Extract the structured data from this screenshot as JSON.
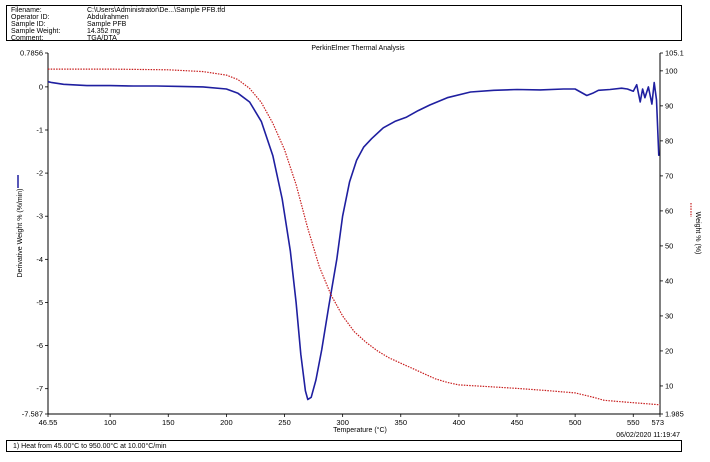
{
  "header": {
    "fields": [
      {
        "label": "Filename:",
        "value": "C:\\Users\\Administrator\\De...\\Sample PFB.tfd"
      },
      {
        "label": "Operator ID:",
        "value": "Abdulrahmen"
      },
      {
        "label": "Sample ID:",
        "value": "Sample PFB"
      },
      {
        "label": "Sample Weight:",
        "value": "14.352 mg"
      },
      {
        "label": "Comment:",
        "value": "TGA/DTA"
      }
    ]
  },
  "footer": {
    "method": "1)  Heat from 45.00°C to 950.00°C at 10.00°C/min",
    "timestamp": "06/02/2020 11:19:47"
  },
  "colors": {
    "derivative": "#1f1fa0",
    "weight": "#c81e1e",
    "axis": "#000000"
  },
  "chart_data": {
    "type": "line",
    "title": "PerkinElmer Thermal Analysis",
    "xlabel": "Temperature (°C)",
    "ylabel_left": "Derivative Weight % (%/min)",
    "ylabel_right": "Weight % (%)",
    "xlim": [
      46.55,
      573
    ],
    "ylim_left": [
      -7.587,
      0.7856
    ],
    "ylim_right": [
      1.985,
      105.1
    ],
    "x_ticks": [
      100,
      150,
      200,
      250,
      300,
      350,
      400,
      450,
      500,
      550
    ],
    "x_tick_labels": [
      "46.55",
      "100",
      "150",
      "200",
      "250",
      "300",
      "350",
      "400",
      "450",
      "500",
      "550",
      "573"
    ],
    "y_left_ticks": [
      0,
      -1,
      -2,
      -3,
      -4,
      -5,
      -6,
      -7
    ],
    "y_left_tick_labels": [
      "0.7856",
      "0",
      "-1",
      "-2",
      "-3",
      "-4",
      "-5",
      "-6",
      "-7",
      "-7.587"
    ],
    "y_right_ticks": [
      100,
      90,
      80,
      70,
      60,
      50,
      40,
      30,
      20,
      10
    ],
    "y_right_tick_labels": [
      "105.1",
      "100",
      "90",
      "80",
      "70",
      "60",
      "50",
      "40",
      "30",
      "20",
      "10",
      "1.985"
    ],
    "grid": false,
    "series": [
      {
        "axis": "left",
        "style": "solid",
        "points": [
          [
            46.55,
            0.12
          ],
          [
            50,
            0.1
          ],
          [
            60,
            0.06
          ],
          [
            80,
            0.03
          ],
          [
            100,
            0.03
          ],
          [
            120,
            0.02
          ],
          [
            140,
            0.02
          ],
          [
            160,
            0.01
          ],
          [
            180,
            0.0
          ],
          [
            200,
            -0.05
          ],
          [
            210,
            -0.15
          ],
          [
            220,
            -0.35
          ],
          [
            230,
            -0.8
          ],
          [
            240,
            -1.6
          ],
          [
            248,
            -2.6
          ],
          [
            255,
            -3.8
          ],
          [
            260,
            -5.0
          ],
          [
            264,
            -6.2
          ],
          [
            268,
            -7.05
          ],
          [
            270,
            -7.25
          ],
          [
            273,
            -7.2
          ],
          [
            277,
            -6.8
          ],
          [
            282,
            -6.1
          ],
          [
            288,
            -5.1
          ],
          [
            295,
            -4.0
          ],
          [
            300,
            -3.0
          ],
          [
            306,
            -2.2
          ],
          [
            312,
            -1.7
          ],
          [
            318,
            -1.4
          ],
          [
            325,
            -1.2
          ],
          [
            335,
            -0.95
          ],
          [
            345,
            -0.8
          ],
          [
            355,
            -0.7
          ],
          [
            365,
            -0.55
          ],
          [
            375,
            -0.42
          ],
          [
            390,
            -0.25
          ],
          [
            410,
            -0.12
          ],
          [
            430,
            -0.08
          ],
          [
            450,
            -0.06
          ],
          [
            470,
            -0.07
          ],
          [
            490,
            -0.05
          ],
          [
            500,
            -0.05
          ],
          [
            510,
            -0.2
          ],
          [
            515,
            -0.15
          ],
          [
            520,
            -0.08
          ],
          [
            530,
            -0.06
          ],
          [
            540,
            -0.03
          ],
          [
            545,
            -0.05
          ],
          [
            550,
            -0.1
          ],
          [
            553,
            0.05
          ],
          [
            556,
            -0.35
          ],
          [
            558,
            -0.05
          ],
          [
            560,
            -0.25
          ],
          [
            563,
            0.0
          ],
          [
            566,
            -0.4
          ],
          [
            568,
            0.1
          ],
          [
            570,
            -0.3
          ],
          [
            572,
            -1.6
          ]
        ]
      },
      {
        "axis": "right",
        "style": "dotted",
        "points": [
          [
            46.55,
            100.5
          ],
          [
            100,
            100.5
          ],
          [
            150,
            100.3
          ],
          [
            180,
            99.8
          ],
          [
            200,
            98.8
          ],
          [
            210,
            97.5
          ],
          [
            220,
            95.0
          ],
          [
            230,
            91.0
          ],
          [
            240,
            85.0
          ],
          [
            250,
            77.5
          ],
          [
            260,
            67.5
          ],
          [
            270,
            55.0
          ],
          [
            280,
            44.0
          ],
          [
            290,
            36.0
          ],
          [
            300,
            30.0
          ],
          [
            310,
            25.5
          ],
          [
            320,
            22.5
          ],
          [
            330,
            20.0
          ],
          [
            340,
            18.0
          ],
          [
            350,
            16.5
          ],
          [
            360,
            15.0
          ],
          [
            370,
            13.5
          ],
          [
            380,
            12.0
          ],
          [
            390,
            11.0
          ],
          [
            400,
            10.3
          ],
          [
            425,
            9.8
          ],
          [
            450,
            9.3
          ],
          [
            475,
            8.7
          ],
          [
            500,
            8.0
          ],
          [
            515,
            6.8
          ],
          [
            525,
            5.9
          ],
          [
            535,
            5.6
          ],
          [
            550,
            5.2
          ],
          [
            573,
            4.6
          ]
        ]
      }
    ]
  }
}
